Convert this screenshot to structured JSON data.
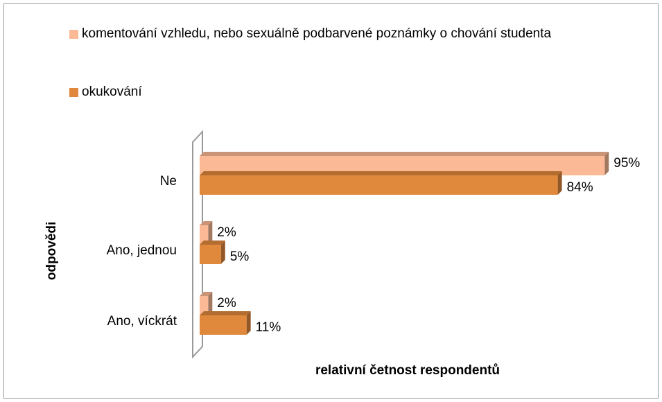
{
  "chart_data": {
    "type": "bar",
    "orientation": "horizontal",
    "categories": [
      "Ne",
      "Ano, jednou",
      "Ano, víckrát"
    ],
    "series": [
      {
        "name": "komentování vzhledu, nebo sexuálně podbarvené poznámky o chování studenta",
        "color": "#fbb995",
        "values": [
          95,
          2,
          2
        ],
        "value_labels": [
          "95%",
          "2%",
          "2%"
        ]
      },
      {
        "name": "okukování",
        "color": "#e0883c",
        "values": [
          84,
          5,
          11
        ],
        "value_labels": [
          "84%",
          "5%",
          "11%"
        ]
      }
    ],
    "xlabel": "relativní četnost respondentů",
    "ylabel": "odpovědi",
    "legend": "top"
  }
}
